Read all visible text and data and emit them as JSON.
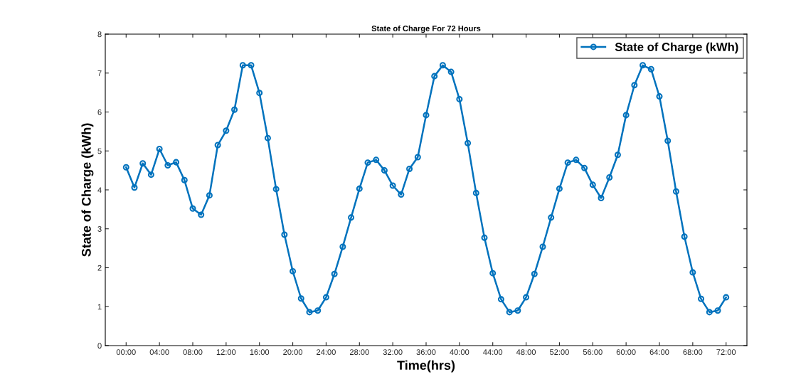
{
  "chart_data": {
    "type": "line",
    "title": "State of Charge For 72 Hours",
    "xlabel": "Time(hrs)",
    "ylabel": "State of Charge (kWh)",
    "x": [
      0,
      1,
      2,
      3,
      4,
      5,
      6,
      7,
      8,
      9,
      10,
      11,
      12,
      13,
      14,
      15,
      16,
      17,
      18,
      19,
      20,
      21,
      22,
      23,
      24,
      25,
      26,
      27,
      28,
      29,
      30,
      31,
      32,
      33,
      34,
      35,
      36,
      37,
      38,
      39,
      40,
      41,
      42,
      43,
      44,
      45,
      46,
      47,
      48,
      49,
      50,
      51,
      52,
      53,
      54,
      55,
      56,
      57,
      58,
      59,
      60,
      61,
      62,
      63,
      64,
      65,
      66,
      67,
      68,
      69,
      70,
      71,
      72
    ],
    "series": [
      {
        "name": "State of Charge (kWh)",
        "color": "#0072bd",
        "values": [
          4.58,
          4.06,
          4.68,
          4.39,
          5.05,
          4.63,
          4.71,
          4.25,
          3.52,
          3.36,
          3.86,
          5.15,
          5.52,
          6.06,
          7.2,
          7.2,
          6.49,
          5.33,
          4.02,
          2.85,
          1.91,
          1.21,
          0.86,
          0.9,
          1.24,
          1.84,
          2.54,
          3.29,
          4.03,
          4.7,
          4.77,
          4.5,
          4.11,
          3.88,
          4.54,
          4.84,
          5.92,
          6.92,
          7.2,
          7.03,
          6.33,
          5.2,
          3.92,
          2.77,
          1.86,
          1.19,
          0.86,
          0.9,
          1.24,
          1.84,
          2.54,
          3.29,
          4.03,
          4.7,
          4.77,
          4.56,
          4.13,
          3.79,
          4.32,
          4.9,
          5.92,
          6.69,
          7.2,
          7.1,
          6.4,
          5.26,
          3.96,
          2.8,
          1.88,
          1.2,
          0.86,
          0.9,
          1.24
        ]
      }
    ],
    "xlim": [
      -2.5,
      74.5
    ],
    "ylim": [
      0,
      8
    ],
    "xticks": [
      {
        "value": 0,
        "label": "00:00"
      },
      {
        "value": 4,
        "label": "04:00"
      },
      {
        "value": 8,
        "label": "08:00"
      },
      {
        "value": 12,
        "label": "12:00"
      },
      {
        "value": 16,
        "label": "16:00"
      },
      {
        "value": 20,
        "label": "20:00"
      },
      {
        "value": 24,
        "label": "24:00"
      },
      {
        "value": 28,
        "label": "28:00"
      },
      {
        "value": 32,
        "label": "32:00"
      },
      {
        "value": 36,
        "label": "36:00"
      },
      {
        "value": 40,
        "label": "40:00"
      },
      {
        "value": 44,
        "label": "44:00"
      },
      {
        "value": 48,
        "label": "48:00"
      },
      {
        "value": 52,
        "label": "52:00"
      },
      {
        "value": 56,
        "label": "56:00"
      },
      {
        "value": 60,
        "label": "60:00"
      },
      {
        "value": 64,
        "label": "64:00"
      },
      {
        "value": 68,
        "label": "68:00"
      },
      {
        "value": 72,
        "label": "72:00"
      }
    ],
    "yticks": [
      0,
      1,
      2,
      3,
      4,
      5,
      6,
      7,
      8
    ],
    "grid": false,
    "legend": "top right",
    "marker": "circle",
    "line_style": "solid"
  }
}
